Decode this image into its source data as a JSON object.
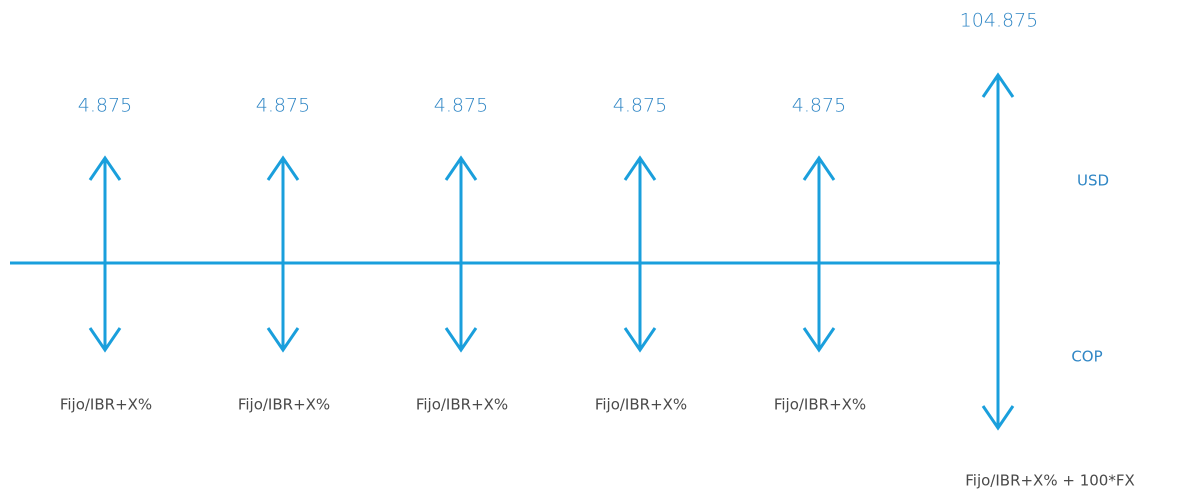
{
  "flows": [
    {
      "top": "4.875",
      "bottom": "Fijo/IBR+X%"
    },
    {
      "top": "4.875",
      "bottom": "Fijo/IBR+X%"
    },
    {
      "top": "4.875",
      "bottom": "Fijo/IBR+X%"
    },
    {
      "top": "4.875",
      "bottom": "Fijo/IBR+X%"
    },
    {
      "top": "4.875",
      "bottom": "Fijo/IBR+X%"
    }
  ],
  "final": {
    "top": "104.875",
    "bottom": "Fijo/IBR+X% + 100*FX"
  },
  "sides": {
    "upper": "USD",
    "lower": "COP"
  }
}
